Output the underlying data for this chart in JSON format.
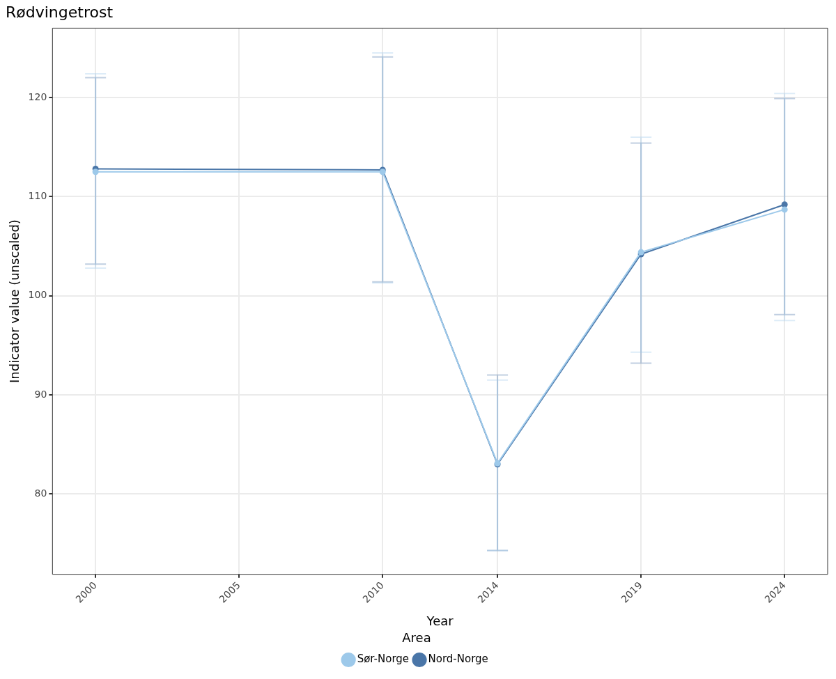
{
  "chart_data": {
    "type": "line",
    "title": "Rødvingetrost",
    "xlabel": "Year",
    "ylabel": "Indicator value (unscaled)",
    "legend_title": "Area",
    "x": [
      2000,
      2010,
      2014,
      2019,
      2024
    ],
    "series": [
      {
        "name": "Nord-Norge",
        "color": "#4a76a8",
        "values": [
          112.8,
          112.7,
          83.0,
          104.2,
          109.2
        ],
        "errors": [
          [
            103.2,
            122.0
          ],
          [
            101.4,
            124.1
          ],
          [
            74.3,
            92.0
          ],
          [
            93.2,
            115.4
          ],
          [
            98.1,
            119.9
          ]
        ]
      },
      {
        "name": "Sør-Norge",
        "color": "#9dc9ea",
        "values": [
          112.5,
          112.5,
          83.1,
          104.4,
          108.7
        ],
        "errors": [
          [
            102.8,
            122.4
          ],
          [
            101.3,
            124.5
          ],
          [
            74.3,
            91.5
          ],
          [
            94.3,
            116.0
          ],
          [
            97.5,
            120.4
          ]
        ]
      }
    ],
    "xlim": [
      1998.5,
      2025.5
    ],
    "xticks": [
      2000,
      2005,
      2010,
      2014,
      2019,
      2024
    ],
    "ylim": [
      71.9,
      127.0
    ],
    "yticks": [
      80,
      90,
      100,
      110,
      120
    ],
    "grid": true,
    "legend": "bottom",
    "marker": "circle",
    "line_style": "solid"
  }
}
